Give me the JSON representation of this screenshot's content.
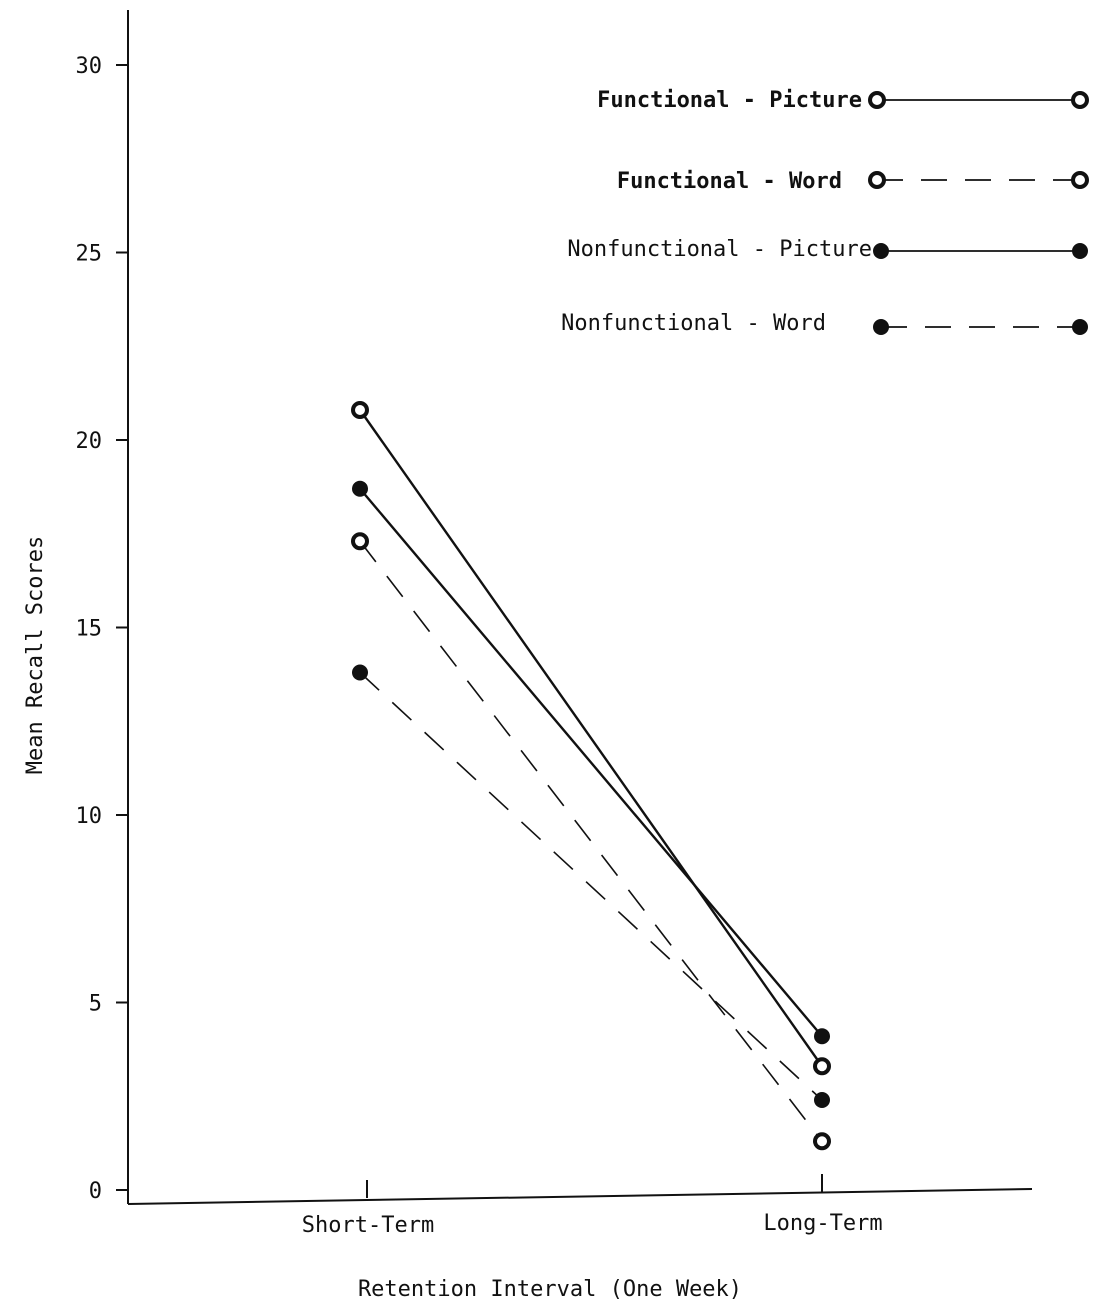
{
  "chart_data": {
    "type": "line",
    "title": "",
    "xlabel": "Retention Interval (One Week)",
    "ylabel": "Mean Recall Scores",
    "categories": [
      "Short-Term",
      "Long-Term"
    ],
    "ylim": [
      0,
      31
    ],
    "yticks": [
      0,
      5,
      10,
      15,
      20,
      25,
      30
    ],
    "grid": false,
    "legend_position": "top-right",
    "series": [
      {
        "name": "Functional - Picture",
        "values": [
          20.8,
          3.3
        ],
        "marker": "open",
        "line": "solid"
      },
      {
        "name": "Functional - Word",
        "values": [
          17.3,
          1.3
        ],
        "marker": "open",
        "line": "dashed"
      },
      {
        "name": "Nonfunctional - Picture",
        "values": [
          18.7,
          4.1
        ],
        "marker": "filled",
        "line": "solid"
      },
      {
        "name": "Nonfunctional - Word",
        "values": [
          13.8,
          2.4
        ],
        "marker": "filled",
        "line": "dashed"
      }
    ]
  }
}
